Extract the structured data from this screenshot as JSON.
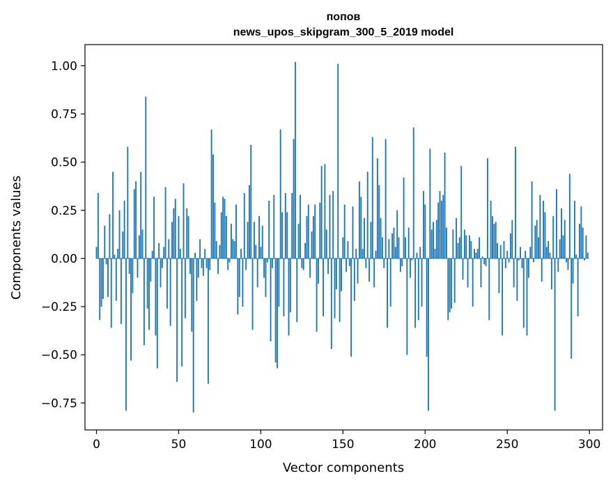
{
  "chart_data": {
    "type": "bar",
    "title": "попов",
    "subtitle": "news_upos_skipgram_300_5_2019 model",
    "xlabel": "Vector components",
    "ylabel": "Components values",
    "xlim": [
      -7,
      308
    ],
    "ylim": [
      -0.89,
      1.11
    ],
    "xticks": [
      0,
      50,
      100,
      150,
      200,
      250,
      300
    ],
    "xtick_labels": [
      "0",
      "50",
      "100",
      "150",
      "200",
      "250",
      "300"
    ],
    "yticks": [
      -0.75,
      -0.5,
      -0.25,
      0.0,
      0.25,
      0.5,
      0.75,
      1.0
    ],
    "ytick_labels": [
      "−0.75",
      "−0.50",
      "−0.25",
      "0.00",
      "0.25",
      "0.50",
      "0.75",
      "1.00"
    ],
    "grid": false,
    "bar_color": "#1f77b4",
    "values": [
      0.06,
      0.34,
      -0.32,
      -0.25,
      -0.21,
      0.17,
      -0.03,
      -0.2,
      0.23,
      -0.36,
      0.45,
      0.02,
      -0.22,
      0.05,
      0.25,
      -0.34,
      0.14,
      0.3,
      -0.79,
      0.58,
      -0.08,
      -0.53,
      -0.18,
      0.36,
      0.4,
      -0.1,
      0.12,
      0.45,
      0.15,
      -0.45,
      0.84,
      -0.26,
      -0.37,
      -0.12,
      0.04,
      0.32,
      -0.4,
      -0.57,
      0.08,
      -0.15,
      -0.05,
      0.06,
      0.37,
      -0.26,
      0.1,
      -0.35,
      0.19,
      0.26,
      0.31,
      -0.64,
      0.22,
      0.05,
      -0.56,
      0.39,
      -0.31,
      0.26,
      0.22,
      -0.08,
      -0.38,
      -0.8,
      0.03,
      -0.22,
      -0.1,
      0.1,
      -0.05,
      -0.09,
      0.05,
      -0.05,
      -0.65,
      -0.06,
      0.67,
      0.54,
      0.29,
      0.09,
      -0.08,
      0.07,
      0.24,
      0.32,
      0.31,
      0.22,
      -0.06,
      -0.02,
      0.18,
      0.1,
      0.09,
      0.28,
      -0.29,
      -0.2,
      0.05,
      -0.25,
      0.34,
      -0.06,
      0.19,
      0.38,
      0.59,
      -0.37,
      0.19,
      0.07,
      -0.15,
      0.22,
      0.06,
      0.17,
      -0.1,
      -0.2,
      -0.02,
      0.3,
      -0.43,
      -0.05,
      0.33,
      -0.54,
      -0.57,
      -0.25,
      0.67,
      0.24,
      -0.3,
      0.34,
      0.24,
      -0.4,
      -0.28,
      0.34,
      0.62,
      1.02,
      -0.33,
      0.18,
      0.33,
      -0.05,
      -0.06,
      0.08,
      0.22,
      0.28,
      -0.1,
      0.14,
      0.22,
      0.28,
      -0.38,
      -0.13,
      0.29,
      0.48,
      -0.3,
      0.49,
      0.15,
      -0.08,
      0.33,
      -0.47,
      0.35,
      -0.31,
      -0.16,
      1.01,
      -0.33,
      -0.17,
      0.11,
      0.28,
      -0.07,
      0.09,
      -0.04,
      -0.51,
      0.27,
      -0.22,
      0.05,
      -0.13,
      0.4,
      0.32,
      0.05,
      0.21,
      -0.05,
      0.45,
      -0.12,
      0.19,
      0.63,
      -0.15,
      0.04,
      0.52,
      0.38,
      0.21,
      0.11,
      -0.05,
      0.62,
      -0.36,
      0.1,
      -0.25,
      0.13,
      0.16,
      0.06,
      0.25,
      0.11,
      -0.07,
      -0.04,
      0.42,
      0.11,
      -0.5,
      0.16,
      -0.1,
      -0.01,
      0.68,
      -0.36,
      0.03,
      -0.32,
      0.06,
      -0.25,
      0.35,
      0.28,
      -0.51,
      -0.79,
      0.57,
      0.15,
      0.19,
      0.05,
      0.2,
      0.29,
      0.35,
      0.3,
      0.33,
      0.55,
      0.16,
      -0.32,
      -0.28,
      -0.26,
      0.15,
      -0.23,
      0.21,
      0.08,
      0.11,
      0.48,
      -0.11,
      0.15,
      0.12,
      -0.15,
      0.12,
      0.09,
      -0.25,
      0.05,
      0.03,
      0.05,
      0.11,
      -0.15,
      0.01,
      -0.03,
      -0.04,
      0.52,
      -0.32,
      0.3,
      0.22,
      0.18,
      0.19,
      0.08,
      -0.18,
      0.07,
      -0.4,
      0.09,
      -0.05,
      0.04,
      -0.02,
      0.13,
      0.2,
      -0.15,
      0.58,
      -0.22,
      -0.01,
      0.06,
      -0.05,
      -0.36,
      0.04,
      -0.4,
      -0.1,
      0.06,
      0.4,
      -0.02,
      0.17,
      0.2,
      0.11,
      0.33,
      -0.12,
      0.3,
      0.24,
      0.06,
      0.09,
      0.03,
      -0.16,
      0.22,
      -0.79,
      0.36,
      -0.07,
      0.1,
      0.26,
      0.12,
      0.2,
      -0.02,
      -0.06,
      0.44,
      -0.52,
      -0.13,
      0.3,
      0.02,
      -0.3,
      0.18,
      0.27,
      0.16,
      -0.01,
      0.12,
      0.03
    ]
  }
}
